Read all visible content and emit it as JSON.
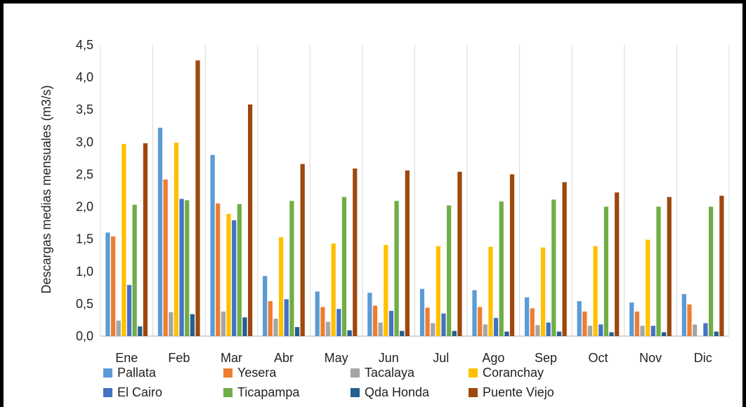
{
  "chart_data": {
    "type": "bar",
    "title": "",
    "xlabel": "",
    "ylabel": "Descargas medias mensuales (m3/s)",
    "ylim": [
      0,
      4.5
    ],
    "yticks": [
      "0,0",
      "0,5",
      "1,0",
      "1,5",
      "2,0",
      "2,5",
      "3,0",
      "3,5",
      "4,0",
      "4,5"
    ],
    "grid": "vertical category separators",
    "legend_position": "bottom",
    "categories": [
      "Ene",
      "Feb",
      "Mar",
      "Abr",
      "May",
      "Jun",
      "Jul",
      "Ago",
      "Sep",
      "Oct",
      "Nov",
      "Dic"
    ],
    "series": [
      {
        "name": "Pallata",
        "color": "#5B9BD5",
        "values": [
          1.6,
          3.22,
          2.8,
          0.93,
          0.69,
          0.67,
          0.73,
          0.71,
          0.6,
          0.54,
          0.52,
          0.65
        ]
      },
      {
        "name": "Yesera",
        "color": "#ED7D31",
        "values": [
          1.54,
          2.42,
          2.05,
          0.54,
          0.45,
          0.47,
          0.44,
          0.45,
          0.43,
          0.38,
          0.38,
          0.49
        ]
      },
      {
        "name": "Tacalaya",
        "color": "#A5A5A5",
        "values": [
          0.24,
          0.37,
          0.38,
          0.27,
          0.22,
          0.21,
          0.2,
          0.18,
          0.17,
          0.16,
          0.16,
          0.18
        ]
      },
      {
        "name": "Coranchay",
        "color": "#FFC000",
        "values": [
          2.97,
          2.99,
          1.89,
          1.53,
          1.43,
          1.41,
          1.39,
          1.38,
          1.37,
          1.39,
          1.49,
          0.0
        ]
      },
      {
        "name": "El Cairo",
        "color": "#4472C4",
        "values": [
          0.79,
          2.12,
          1.79,
          0.57,
          0.42,
          0.39,
          0.35,
          0.28,
          0.21,
          0.18,
          0.16,
          0.2
        ]
      },
      {
        "name": "Ticapampa",
        "color": "#70AD47",
        "values": [
          2.03,
          2.1,
          2.04,
          2.09,
          2.15,
          2.09,
          2.02,
          2.08,
          2.11,
          2.0,
          2.0,
          2.0
        ]
      },
      {
        "name": "Qda Honda",
        "color": "#255E91",
        "values": [
          0.15,
          0.34,
          0.29,
          0.14,
          0.09,
          0.08,
          0.08,
          0.07,
          0.07,
          0.06,
          0.06,
          0.07
        ]
      },
      {
        "name": "Puente Viejo",
        "color": "#9E480E",
        "values": [
          2.98,
          4.26,
          3.58,
          2.66,
          2.59,
          2.56,
          2.54,
          2.5,
          2.38,
          2.22,
          2.15,
          2.17
        ]
      }
    ]
  }
}
